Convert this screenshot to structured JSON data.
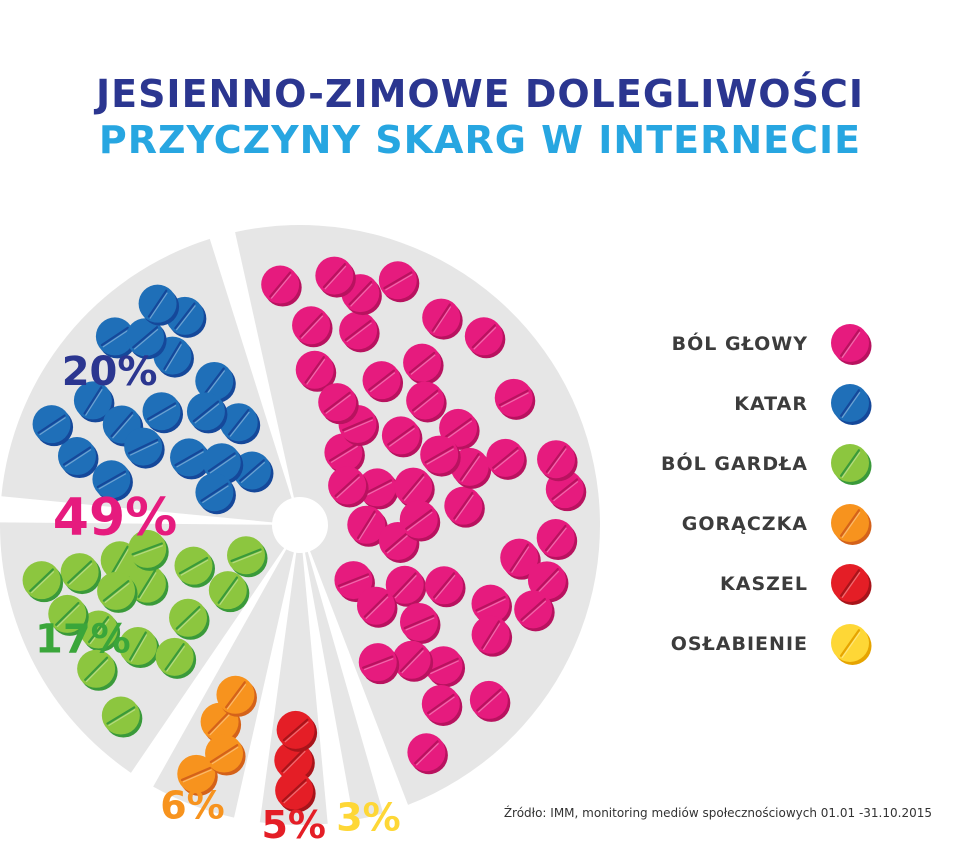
{
  "title": "JESIENNO-ZIMOWE DOLEGLIWOŚCI",
  "subtitle": "PRZYCZYNY SKARG W INTERNECIE",
  "source": "Źródło: IMM, monitoring mediów społecznościowych 01.01 -31.10.2015",
  "chart_data": {
    "type": "pie",
    "title": "JESIENNO-ZIMOWE DOLEGLIWOŚCI",
    "subtitle": "PRZYCZYNY SKARG W INTERNECIE",
    "legend_position": "right",
    "slices": [
      {
        "name": "BÓL GŁOWY",
        "value": 49,
        "label": "49%",
        "color": "#e61b7e",
        "color_dark": "#b8125f"
      },
      {
        "name": "OSŁABIENIE",
        "value": 3,
        "label": "3%",
        "color": "#fed736",
        "color_dark": "#e6a400"
      },
      {
        "name": "KASZEL",
        "value": 5,
        "label": "5%",
        "color": "#e41e26",
        "color_dark": "#a8141a"
      },
      {
        "name": "GORĄCZKA",
        "value": 6,
        "label": "6%",
        "color": "#f7931e",
        "color_dark": "#d4621a"
      },
      {
        "name": "BÓL GARDŁA",
        "value": 17,
        "label": "17%",
        "color": "#8cc63f",
        "color_dark": "#3a9a3a"
      },
      {
        "name": "KATAR",
        "value": 20,
        "label": "20%",
        "color": "#1f6fb8",
        "color_dark": "#15489a"
      }
    ],
    "legend": [
      "BÓL GŁOWY",
      "KATAR",
      "BÓL GARDŁA",
      "GORĄCZKA",
      "KASZEL",
      "OSŁABIENIE"
    ]
  }
}
